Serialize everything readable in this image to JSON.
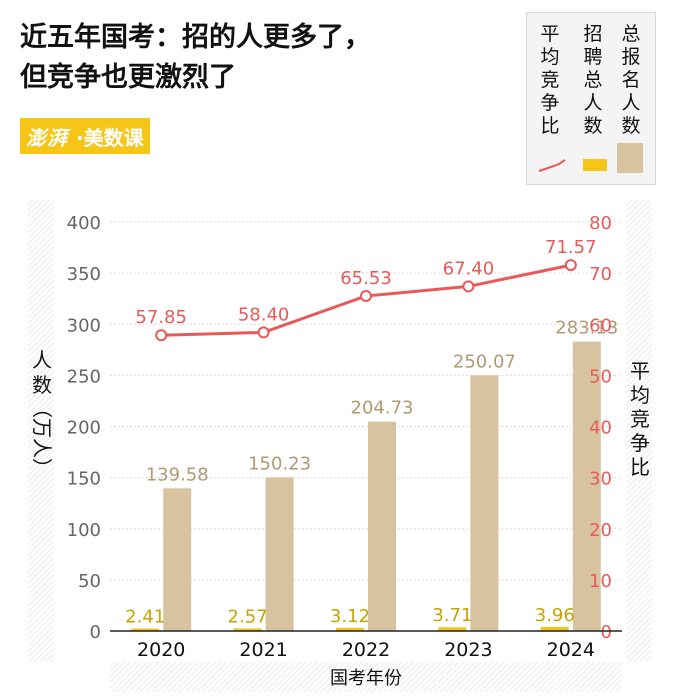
{
  "title": {
    "line1": "近五年国考：招的人更多了，",
    "line2": "但竞争也更激烈了"
  },
  "logo": {
    "part1": "澎湃",
    "part2": "·美数课"
  },
  "legend": {
    "ratio": "平均竞争比",
    "hired": "招聘总人数",
    "applicants": "总报名人数"
  },
  "colors": {
    "applicants": "#d8c3a0",
    "hired": "#f5c518",
    "ratio": "#e85a5a",
    "axis_left": "#666666",
    "axis_right": "#e85a5a"
  },
  "chart_data": {
    "type": "bar",
    "categories": [
      "2020",
      "2021",
      "2022",
      "2023",
      "2024"
    ],
    "series": [
      {
        "name": "总报名人数",
        "type": "bar",
        "axis": "left",
        "values": [
          139.58,
          150.23,
          204.73,
          250.07,
          283.13
        ]
      },
      {
        "name": "招聘总人数",
        "type": "bar",
        "axis": "left",
        "values": [
          2.41,
          2.57,
          3.12,
          3.71,
          3.96
        ]
      },
      {
        "name": "平均竞争比",
        "type": "line",
        "axis": "right",
        "values": [
          57.85,
          58.4,
          65.53,
          67.4,
          71.57
        ]
      }
    ],
    "xlabel": "国考年份",
    "ylabel": "人数（万人）",
    "y2label": "平均竞争比",
    "ylim": [
      0,
      400
    ],
    "y2lim": [
      0,
      80
    ],
    "yticks": [
      0,
      50,
      100,
      150,
      200,
      250,
      300,
      350,
      400
    ],
    "y2ticks": [
      0,
      10,
      20,
      30,
      40,
      50,
      60,
      70,
      80
    ],
    "labels": {
      "applicants": [
        "139.58",
        "150.23",
        "204.73",
        "250.07",
        "283.13"
      ],
      "hired": [
        "2.41",
        "2.57",
        "3.12",
        "3.71",
        "3.96"
      ],
      "ratio": [
        "57.85",
        "58.40",
        "65.53",
        "67.40",
        "71.57"
      ]
    },
    "grid": true
  }
}
